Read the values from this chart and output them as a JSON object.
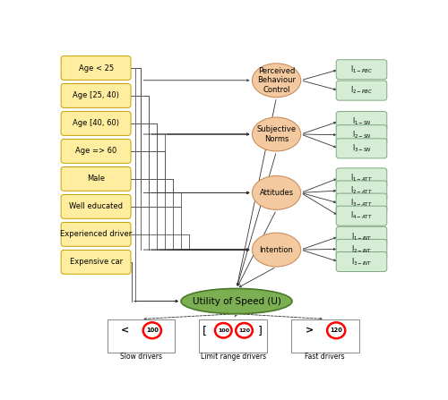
{
  "left_boxes": [
    "Age < 25",
    "Age [25, 40)",
    "Age [40, 60)",
    "Age => 60",
    "Male",
    "Well educated",
    "Experienced driver",
    "Expensive car"
  ],
  "left_box_color": "#FFEEA0",
  "left_box_edge": "#C8A000",
  "right_circles": [
    "Perceived\nBehaviour\nControl",
    "Subjective\nNorms",
    "Attitudes",
    "Intention"
  ],
  "circle_color": "#F5C9A0",
  "circle_edge": "#C89060",
  "utility_label": "Utility of Speed (U)",
  "utility_color": "#7BAF52",
  "utility_edge": "#4A7A28",
  "indicator_labels_pbc": [
    "I$_{1-PBC}$",
    "I$_{2-PBC}$"
  ],
  "indicator_labels_sn": [
    "I$_{1-SN}$",
    "I$_{2-SN}$",
    "I$_{3-SN}$"
  ],
  "indicator_labels_att": [
    "I$_{1-ATT}$",
    "I$_{2-ATT}$",
    "I$_{3-ATT}$",
    "I$_{4-ATT}$"
  ],
  "indicator_labels_int": [
    "I$_{1-INT}$",
    "I$_{2-INT}$",
    "I$_{3-INT}$"
  ],
  "indicator_color": "#D4EDD4",
  "indicator_edge": "#80A880",
  "line_color": "#555555",
  "arrow_color": "#333333"
}
